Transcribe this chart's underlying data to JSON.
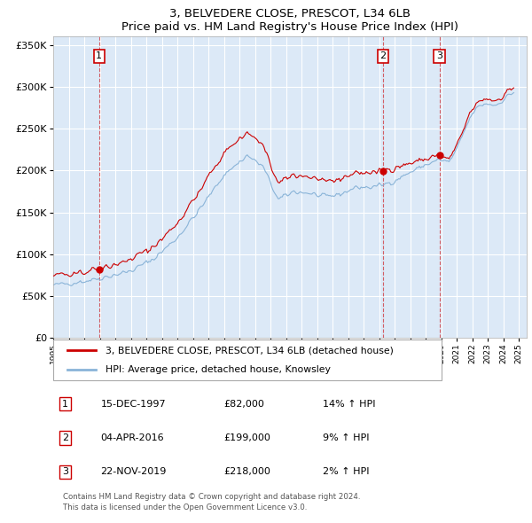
{
  "title": "3, BELVEDERE CLOSE, PRESCOT, L34 6LB",
  "subtitle": "Price paid vs. HM Land Registry's House Price Index (HPI)",
  "ylim": [
    0,
    360000
  ],
  "yticks": [
    0,
    50000,
    100000,
    150000,
    200000,
    250000,
    300000,
    350000
  ],
  "background_color": "#dce9f7",
  "sale_color": "#cc0000",
  "hpi_color": "#8ab4d8",
  "sale_dates_year": [
    1997.958,
    2016.25,
    2019.875
  ],
  "sale_prices": [
    82000,
    199000,
    218000
  ],
  "sale_labels": [
    "1",
    "2",
    "3"
  ],
  "legend_sale": "3, BELVEDERE CLOSE, PRESCOT, L34 6LB (detached house)",
  "legend_hpi": "HPI: Average price, detached house, Knowsley",
  "table_entries": [
    {
      "num": "1",
      "date": "15-DEC-1997",
      "price": "£82,000",
      "change": "14% ↑ HPI"
    },
    {
      "num": "2",
      "date": "04-APR-2016",
      "price": "£199,000",
      "change": "9% ↑ HPI"
    },
    {
      "num": "3",
      "date": "22-NOV-2019",
      "price": "£218,000",
      "change": "2% ↑ HPI"
    }
  ],
  "footnote1": "Contains HM Land Registry data © Crown copyright and database right 2024.",
  "footnote2": "This data is licensed under the Open Government Licence v3.0.",
  "xlim_start": 1995.0,
  "xlim_end": 2025.5
}
